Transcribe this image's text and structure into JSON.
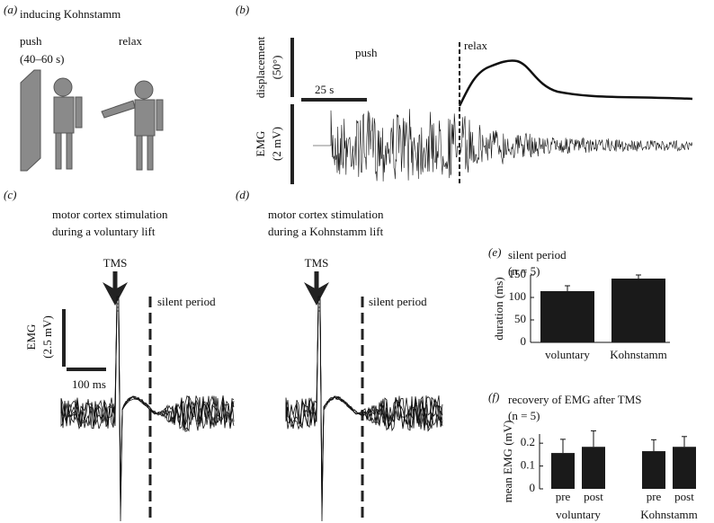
{
  "panels": {
    "a": {
      "label": "(a)",
      "title": "inducing Kohnstamm",
      "push": "push",
      "push_duration": "(40–60 s)",
      "relax": "relax"
    },
    "b": {
      "label": "(b)",
      "push": "push",
      "relax": "relax",
      "displacement_label": "displacement",
      "displacement_scale": "(50°)",
      "time_scale": "25 s",
      "emg_label": "EMG",
      "emg_scale": "(2 mV)"
    },
    "c": {
      "label": "(c)",
      "title_line1": "motor cortex stimulation",
      "title_line2": "during a voluntary lift",
      "tms": "TMS",
      "silent_period": "silent period",
      "emg_label": "EMG",
      "emg_scale": "(2.5 mV)",
      "time_scale": "100 ms"
    },
    "d": {
      "label": "(d)",
      "title_line1": "motor cortex stimulation",
      "title_line2": "during a Kohnstamm lift",
      "tms": "TMS",
      "silent_period": "silent period"
    }
  },
  "chart_data": [
    {
      "type": "bar",
      "label": "(e)",
      "title": "silent period",
      "subtitle": "(n = 5)",
      "ylabel": "duration (ms)",
      "categories": [
        "voluntary",
        "Kohnstamm"
      ],
      "values": [
        114,
        142
      ],
      "errors": [
        12,
        8
      ],
      "color": "#1a1a1a",
      "ylim": [
        0,
        150
      ],
      "yticks": [
        0,
        50,
        100,
        150
      ]
    },
    {
      "type": "grouped-bar",
      "label": "(f)",
      "title": "recovery of EMG after TMS",
      "subtitle": "(n = 5)",
      "ylabel": "mean EMG (mV)",
      "groups": [
        {
          "name": "voluntary",
          "categories": [
            "pre",
            "post"
          ],
          "values": [
            0.157,
            0.184
          ],
          "errors": [
            0.06,
            0.07
          ]
        },
        {
          "name": "Kohnstamm",
          "categories": [
            "pre",
            "post"
          ],
          "values": [
            0.165,
            0.184
          ],
          "errors": [
            0.05,
            0.045
          ]
        }
      ],
      "color": "#1a1a1a",
      "ylim": [
        0,
        0.24
      ],
      "yticks": [
        0,
        0.1,
        0.2
      ]
    }
  ]
}
